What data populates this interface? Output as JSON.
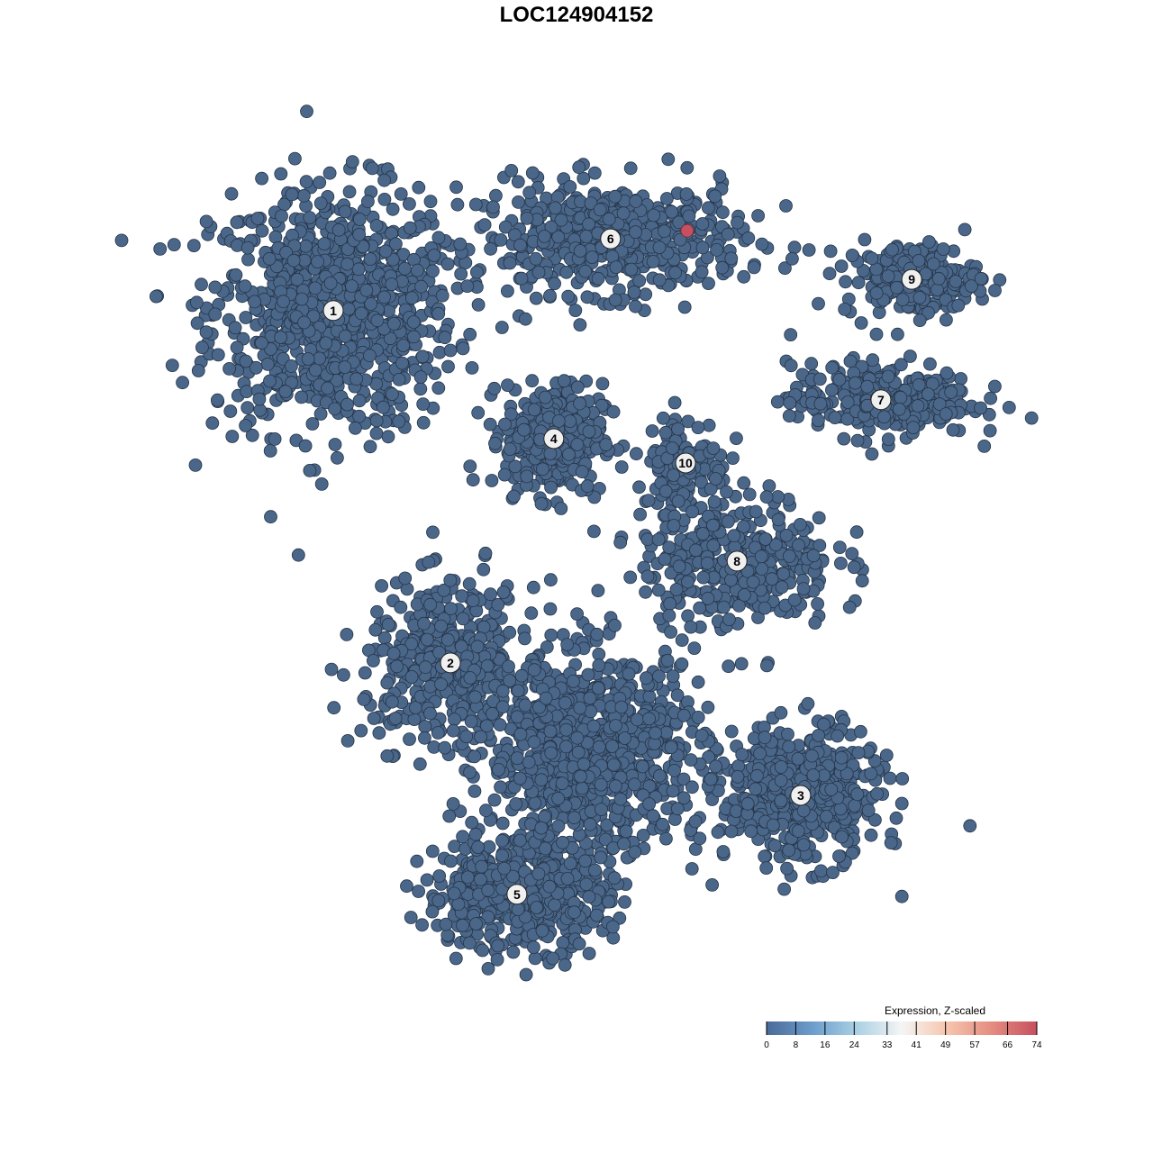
{
  "chart_data": {
    "type": "scatter",
    "title": "LOC124904152",
    "xlabel": "",
    "ylabel": "",
    "grid": false,
    "axes_visible": false,
    "point_color": "#4a6689",
    "point_stroke": "#253548",
    "clusters": [
      {
        "label": "1",
        "center": [
          -6.0,
          6.56
        ],
        "spread": [
          2.0,
          2.0
        ],
        "n": 900
      },
      {
        "label": "6",
        "center": [
          0.84,
          8.33
        ],
        "spread": [
          2.2,
          0.9
        ],
        "n": 520
      },
      {
        "label": "4",
        "center": [
          -0.56,
          3.4
        ],
        "spread": [
          0.8,
          0.9
        ],
        "n": 360
      },
      {
        "label": "10",
        "center": [
          2.69,
          2.8
        ],
        "spread": [
          0.7,
          0.8
        ],
        "n": 120
      },
      {
        "label": "9",
        "center": [
          8.27,
          7.33
        ],
        "spread": [
          1.1,
          0.6
        ],
        "n": 200
      },
      {
        "label": "7",
        "center": [
          7.51,
          4.36
        ],
        "spread": [
          1.5,
          0.6
        ],
        "n": 300
      },
      {
        "label": "8",
        "center": [
          3.96,
          0.38
        ],
        "spread": [
          1.6,
          1.1
        ],
        "n": 350
      },
      {
        "label": "2",
        "center": [
          -3.11,
          -2.13
        ],
        "spread": [
          1.4,
          1.3
        ],
        "n": 420
      },
      {
        "label": "3",
        "center": [
          5.53,
          -5.4
        ],
        "spread": [
          1.3,
          1.1
        ],
        "n": 520
      },
      {
        "label": "5",
        "center": [
          -1.47,
          -7.84
        ],
        "spread": [
          1.5,
          0.9
        ],
        "n": 520
      }
    ],
    "unlabeled_groups": [
      {
        "center": [
          0.4,
          -4.3
        ],
        "spread": [
          1.8,
          1.6
        ],
        "n": 900
      }
    ],
    "highlighted_points": [
      {
        "x": 2.73,
        "y": 8.53,
        "value": 74
      }
    ],
    "colorbar": {
      "title": "Expression, Z-scaled",
      "ticks": [
        "0",
        "8",
        "16",
        "24",
        "33",
        "41",
        "49",
        "57",
        "66",
        "74"
      ],
      "range": [
        0,
        74
      ],
      "colors": [
        "#4a6a97",
        "#6b9ccb",
        "#a9d0e4",
        "#f5f5f5",
        "#f6c6ae",
        "#e58c80",
        "#c6505f"
      ]
    }
  }
}
